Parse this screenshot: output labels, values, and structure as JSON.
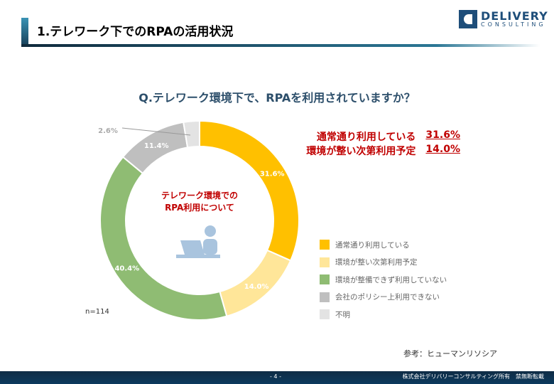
{
  "header": {
    "title": "1.テレワーク下でのRPAの活用状況",
    "logo_line1": "DELIVERY",
    "logo_line2": "CONSULTING"
  },
  "question": "Q.テレワーク環境下で、RPAを利用されていますか？",
  "highlights": [
    {
      "label": "通常通り利用している",
      "value": "31.6%"
    },
    {
      "label": "環境が整い次第利用予定",
      "value": "14.0%"
    }
  ],
  "center_text": [
    "テレワーク環境での",
    "RPA利用について"
  ],
  "sample_size": "n=114",
  "source": "参考：ヒューマンリソシア",
  "footer": {
    "page": "- 4 -",
    "copyright": "株式会社デリバリーコンサルティング所有　禁無断転載"
  },
  "chart_data": {
    "type": "pie",
    "donut": true,
    "categories": [
      "通常通り利用している",
      "環境が整い次第利用予定",
      "環境が整備できず利用していない",
      "会社のポリシー上利用できない",
      "不明"
    ],
    "values": [
      31.6,
      14.0,
      40.4,
      11.4,
      2.6
    ],
    "labels": [
      "31.6%",
      "14.0%",
      "40.4%",
      "11.4%",
      "2.6%"
    ],
    "colors": [
      "#ffc000",
      "#ffe699",
      "#8fbc73",
      "#bfbfbf",
      "#e3e3e3"
    ],
    "label_colors": [
      "#ffffff",
      "#ffffff",
      "#ffffff",
      "#ffffff",
      "#aaaaaa"
    ],
    "legend": "right"
  }
}
